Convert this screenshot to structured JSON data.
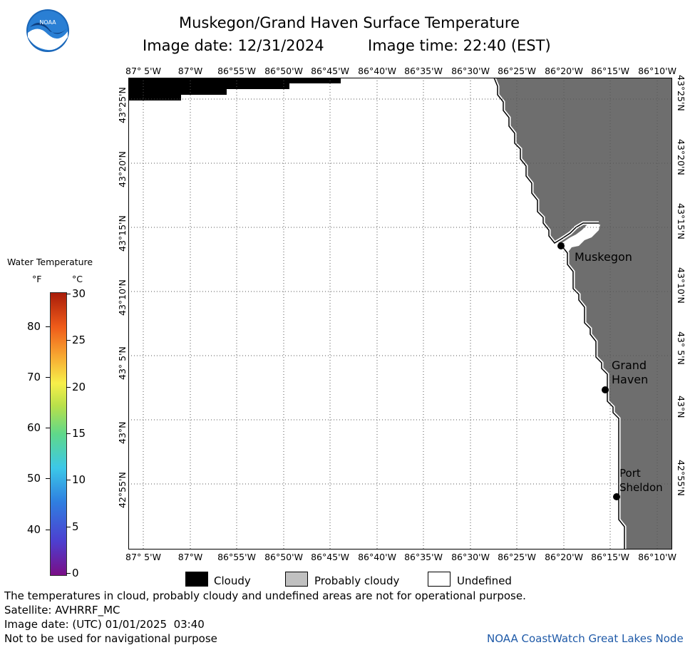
{
  "header": {
    "logo_text": "NOAA",
    "title": "Muskegon/Grand Haven Surface Temperature",
    "image_date_line": "Image date: 12/31/2024",
    "image_time_line": "Image time: 22:40 (EST)"
  },
  "lon_labels": [
    "87° 5'W",
    "87°W",
    "86°55'W",
    "86°50'W",
    "86°45'W",
    "86°40'W",
    "86°35'W",
    "86°30'W",
    "86°25'W",
    "86°20'W",
    "86°15'W",
    "86°10'W"
  ],
  "lat_labels": [
    "43°25'N",
    "43°20'N",
    "43°15'N",
    "43°10'N",
    "43° 5'N",
    "43°N",
    "42°55'N"
  ],
  "places": [
    {
      "name_lines": [
        "Muskegon"
      ]
    },
    {
      "name_lines": [
        "Grand",
        "Haven"
      ]
    },
    {
      "name_lines": [
        "Port",
        "Sheldon"
      ]
    }
  ],
  "colorbar": {
    "title": "Water Temperature",
    "unit_f": "°F",
    "unit_c": "°C",
    "f_ticks": [
      "80",
      "70",
      "60",
      "50",
      "40"
    ],
    "c_ticks": [
      "30",
      "25",
      "20",
      "15",
      "10",
      "5",
      "0"
    ]
  },
  "legend": {
    "cloudy": "Cloudy",
    "probably_cloudy": "Probably cloudy",
    "undefined": "Undefined",
    "colors": {
      "cloudy": "#000000",
      "probably_cloudy": "#c0c0c0",
      "undefined": "#ffffff",
      "land": "#6e6e6e"
    }
  },
  "footer": {
    "disclaimer": "The temperatures in cloud, probably cloudy and undefined areas are not for operational purpose.",
    "satellite": "Satellite: AVHRRF_MC",
    "utc_date": "Image date: (UTC) 01/01/2025  03:40",
    "nav": "Not to be used for navigational purpose",
    "credit": "NOAA CoastWatch Great Lakes Node"
  }
}
